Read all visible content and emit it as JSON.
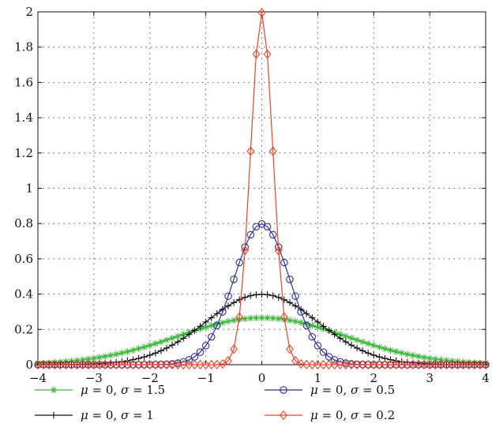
{
  "chart_data": {
    "type": "line",
    "title": "",
    "xlabel": "",
    "ylabel": "",
    "xlim": [
      -4,
      4
    ],
    "ylim": [
      0,
      2
    ],
    "xticks": [
      -4,
      -3,
      -2,
      -1,
      0,
      1,
      2,
      3,
      4
    ],
    "xtick_labels": [
      "−4",
      "−3",
      "−2",
      "−1",
      "0",
      "1",
      "2",
      "3",
      "4"
    ],
    "yticks": [
      0,
      0.2,
      0.4,
      0.6,
      0.8,
      1,
      1.2,
      1.4,
      1.6,
      1.8,
      2
    ],
    "ytick_labels": [
      "0",
      "0.2",
      "0.4",
      "0.6",
      "0.8",
      "1",
      "1.2",
      "1.4",
      "1.6",
      "1.8",
      "2"
    ],
    "grid": true,
    "legend_position": "bottom, two columns",
    "sample_step": 0.1,
    "series": [
      {
        "id": "s15",
        "name": "μ = 0, σ = 1.5",
        "mu_text": "μ",
        "sigma_text": "σ",
        "eq_mu": " = 0, ",
        "eq_sigma": " = 1.5",
        "mu": 0,
        "sigma": 1.5,
        "color": "#3db63b",
        "marker": "asterisk"
      },
      {
        "id": "s1",
        "name": "μ = 0, σ = 1",
        "mu_text": "μ",
        "sigma_text": "σ",
        "eq_mu": " = 0, ",
        "eq_sigma": " = 1",
        "mu": 0,
        "sigma": 1,
        "color": "#111111",
        "marker": "plus"
      },
      {
        "id": "s05",
        "name": "μ = 0, σ = 0.5",
        "mu_text": "μ",
        "sigma_text": "σ",
        "eq_mu": " = 0, ",
        "eq_sigma": " = 0.5",
        "mu": 0,
        "sigma": 0.5,
        "color": "#2a2f8f",
        "marker": "circle"
      },
      {
        "id": "s02",
        "name": "μ = 0, σ = 0.2",
        "mu_text": "μ",
        "sigma_text": "σ",
        "eq_mu": " = 0, ",
        "eq_sigma": " = 0.2",
        "mu": 0,
        "sigma": 0.2,
        "color": "#e8442a",
        "marker": "diamond"
      }
    ]
  }
}
